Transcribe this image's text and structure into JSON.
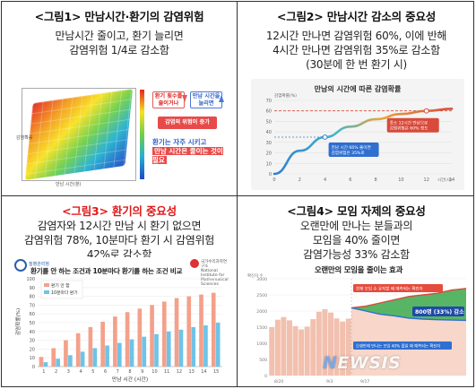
{
  "panels": [
    {
      "title": "<그림1> 만남시간·환기의 감염위험",
      "lines": [
        "만남시간 줄이고, 환기 늘리면",
        "감염위험 1/4로 감소함"
      ],
      "figure": {
        "tags": [
          "환기 횟수를 줄이거나",
          "만남 시간을 늘리면",
          "감염의 위험이 증가",
          "환기는 자주 시키고",
          "만남 시간은 줄이는 것이 필요"
        ],
        "axis_labels": [
          "만남 시간(분)",
          "감염확률"
        ]
      }
    },
    {
      "title": "<그림2> 만남시간 감소의 중요성",
      "lines": [
        "12시간 만나면 감염위험 60%, 이에 반해",
        "4시간 만나면 감염위험 35%로 감소함",
        "(30분에 한 번 환기 시)"
      ]
    },
    {
      "title": "<그림3> 환기의 중요성",
      "lines": [
        "감염자와 12시간 만남 시 환기 없으면",
        "감염위험 78%, 10분마다 환기 시 감염위험",
        "42%로 감소함"
      ]
    },
    {
      "title": "<그림4> 모임 자제의 중요성",
      "lines": [
        "오랜만에 만나는 분들과의",
        "모임을 40% 줄이면",
        "감염가능성 33% 감소함"
      ]
    }
  ],
  "logos": {
    "left": "질병관리청",
    "right": [
      "국가수리과학연구소",
      "National Institute for Mathematical Sciences"
    ]
  },
  "watermark": {
    "n": "N",
    "rest": "EWSIS"
  },
  "colors": {
    "red_title": "#e01919",
    "bar_no_vent": "#f4a08a",
    "bar_vent": "#6ec3e8",
    "curve_red": "#d84a3a",
    "green_band": "#3aa84a"
  },
  "chart_data": [
    {
      "type": "area",
      "title": "",
      "xlabel": "만남 시간(분)",
      "ylabel": "감염확률",
      "note": "3D surface: infection probability increases with meeting time and decreases with ventilation frequency"
    },
    {
      "type": "line",
      "title": "만남의 시간에 따른 감염확률",
      "xlabel": "시간(시)",
      "ylabel": "감염확률(%)",
      "x": [
        0,
        2,
        4,
        6,
        8,
        10,
        12,
        14
      ],
      "y": [
        0,
        22,
        35,
        45,
        52,
        57,
        60,
        62
      ],
      "ylim": [
        0,
        70
      ],
      "xticks": [
        "0",
        "2",
        "4",
        "6",
        "8",
        "10",
        "12",
        "14"
      ],
      "yticks": [
        "0",
        "10",
        "20",
        "30",
        "40",
        "50",
        "60",
        "70"
      ],
      "reference_line": 60,
      "annotations": [
        {
          "x": 4,
          "y": 35,
          "text": "만남 시간 66% 줄이면 감염위험은 35%로"
        },
        {
          "x": 12,
          "y": 60,
          "text": "종소 12시간 만남으로 감염위험은 60% 정도"
        }
      ]
    },
    {
      "type": "bar",
      "title": "환기를 안 하는 조건과 10분마다 환기를 하는 조건 비교",
      "xlabel": "만남 시간 (시간)",
      "ylabel": "감염확률(%)",
      "categories": [
        "1",
        "2",
        "3",
        "4",
        "5",
        "6",
        "7",
        "8",
        "9",
        "10",
        "11",
        "12",
        "13",
        "14",
        "15"
      ],
      "series": [
        {
          "name": "환기 안 함",
          "values": [
            11,
            21,
            30,
            38,
            45,
            51,
            57,
            62,
            66,
            70,
            74,
            78,
            80,
            82,
            84
          ]
        },
        {
          "name": "10분마다 환기",
          "values": [
            5,
            9,
            13,
            17,
            21,
            24,
            27,
            31,
            34,
            37,
            40,
            42,
            45,
            47,
            50
          ]
        }
      ],
      "ylim": [
        0,
        100
      ],
      "yticks": [
        "0",
        "10",
        "20",
        "30",
        "40",
        "50",
        "60",
        "70",
        "80",
        "90",
        "100"
      ]
    },
    {
      "type": "area",
      "title": "오랜만의 모임을 줄이는 효과",
      "ylabel": "확진자 수",
      "xticks": [
        "8/20",
        "9/3",
        "9/17"
      ],
      "yticks": [
        "0",
        "500",
        "1000",
        "1500",
        "2000",
        "2500",
        "3000"
      ],
      "series": [
        {
          "name": "현재 모임 수 유지할 때 예측되는 확진자",
          "values": [
            2100,
            2150,
            2250,
            2350,
            2450,
            2500,
            2550,
            2650,
            2700
          ]
        },
        {
          "name": "오랜만에 만나는 모임 40% 줄일 때 예측되는 확진자",
          "values": [
            2100,
            2000,
            1900,
            1850,
            1780,
            1750,
            1730,
            1720,
            1710
          ]
        }
      ],
      "annotation": "800명 (33%) 감소 효과"
    }
  ]
}
